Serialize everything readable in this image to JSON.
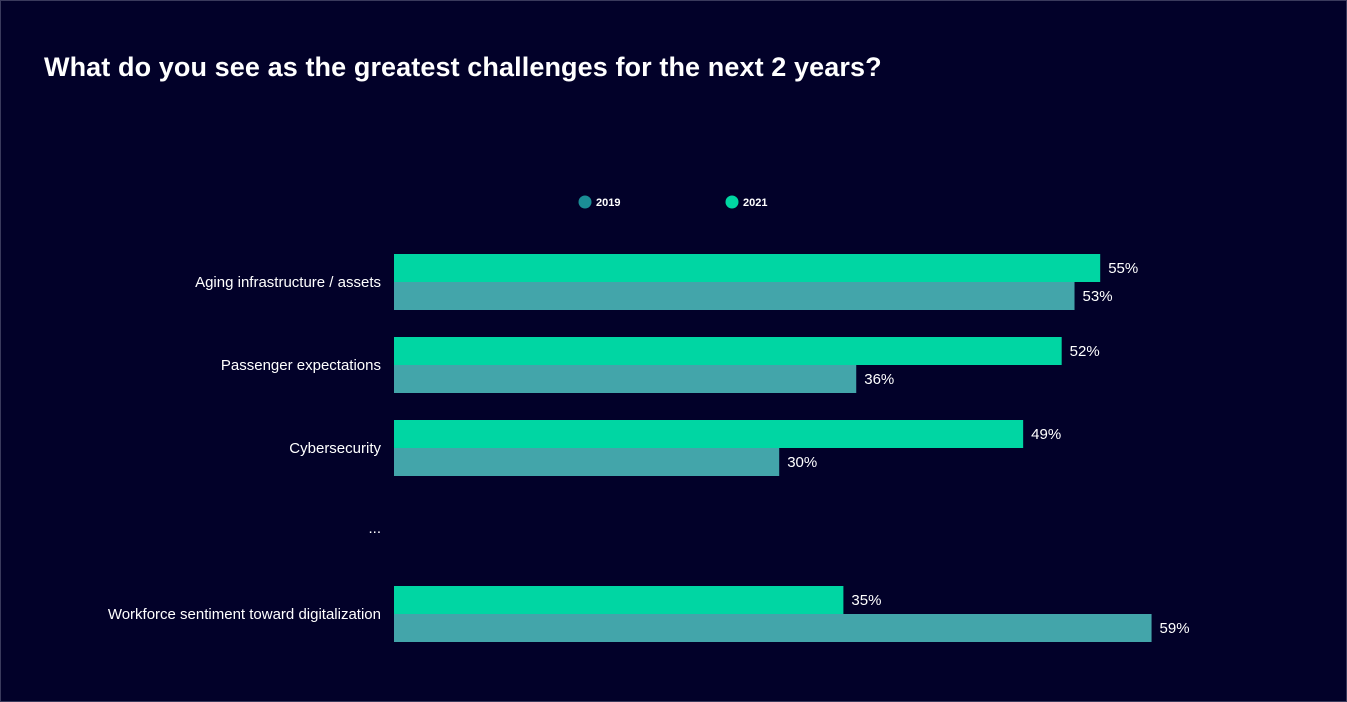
{
  "chart_data": {
    "type": "bar",
    "orientation": "horizontal",
    "title": "What do you see as the greatest challenges for the next 2 years?",
    "categories": [
      "Aging infrastructure / assets",
      "Passenger expectations",
      "Cybersecurity",
      "...",
      "Workforce sentiment toward digitalization"
    ],
    "series": [
      {
        "name": "2021",
        "color": "#00d6a3",
        "values": [
          55,
          52,
          49,
          null,
          35
        ],
        "labels": [
          "55%",
          "52%",
          "49%",
          "",
          "35%"
        ]
      },
      {
        "name": "2019",
        "color": "#43a5aa",
        "values": [
          53,
          36,
          30,
          null,
          59
        ],
        "labels": [
          "53%",
          "36%",
          "30%",
          "",
          "59%"
        ]
      }
    ],
    "legend": {
      "placement": "top-center",
      "entries": [
        {
          "name": "2019",
          "color": "#1b8e96"
        },
        {
          "name": "2021",
          "color": "#00d6a3"
        }
      ]
    },
    "xlim": [
      0,
      100
    ],
    "grid": false
  }
}
